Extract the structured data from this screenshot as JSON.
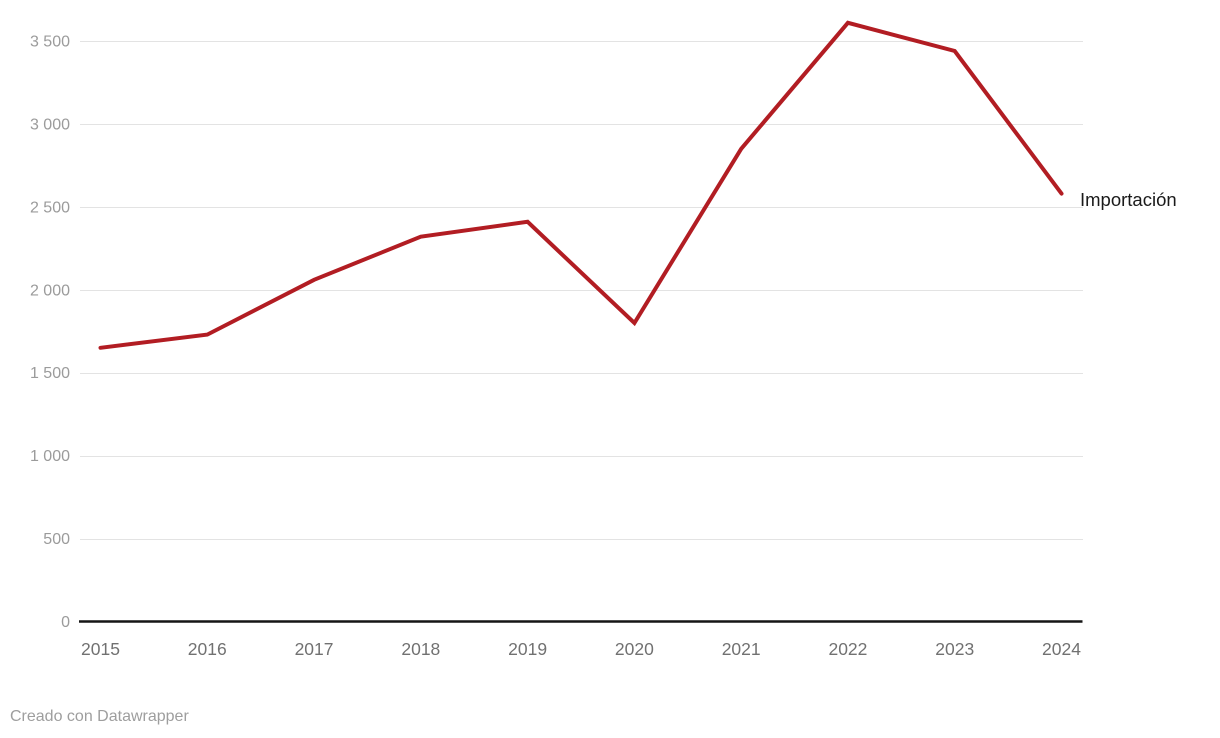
{
  "chart_data": {
    "type": "line",
    "title": "",
    "categories": [
      "2015",
      "2016",
      "2017",
      "2018",
      "2019",
      "2020",
      "2021",
      "2022",
      "2023",
      "2024"
    ],
    "series": [
      {
        "name": "Importación",
        "color": "#b21d23",
        "values": [
          1650,
          1730,
          2060,
          2320,
          2410,
          1800,
          2850,
          3610,
          3440,
          2580
        ]
      }
    ],
    "xlabel": "",
    "ylabel": "",
    "ylim": [
      0,
      3500
    ],
    "ytick_step": 500,
    "ytick_labels": [
      "0",
      "500",
      "1 000",
      "1 500",
      "2 000",
      "2 500",
      "3 000",
      "3 500"
    ],
    "grid": "horizontal gridlines on, baseline emphasized",
    "legend_position": "inline label right of last point",
    "appearance": {
      "gridline_color": "#e3e3e3",
      "axis_color": "#151515",
      "ytick_color": "#9b9b9b",
      "xtick_color": "#717171",
      "series_label_color": "#1a1a1a",
      "background": "#ffffff",
      "line_width": 4
    }
  },
  "footer": {
    "credit": "Creado con Datawrapper"
  }
}
